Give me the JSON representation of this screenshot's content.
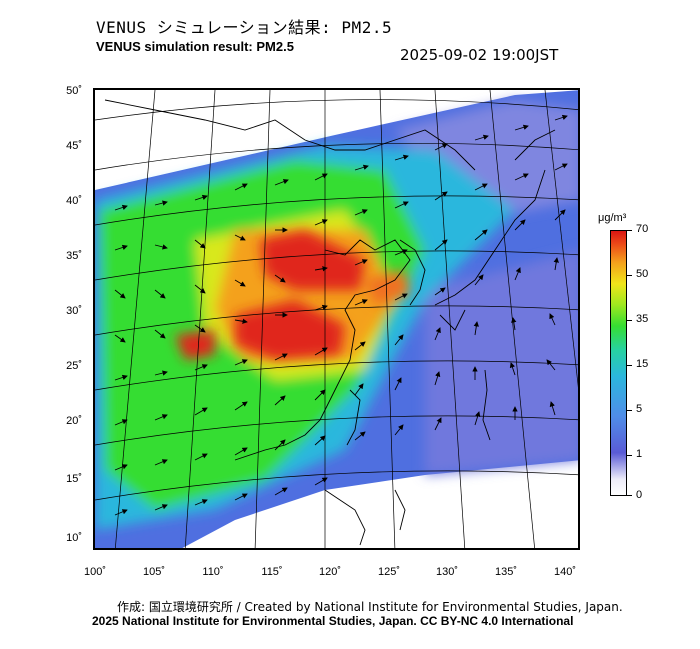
{
  "title_jp": "VENUS シミュレーション結果: PM2.5",
  "title_en": "VENUS simulation result: PM2.5",
  "timestamp": "2025-09-02 19:00JST",
  "lat_ticks": [
    "50˚",
    "45˚",
    "40˚",
    "35˚",
    "30˚",
    "25˚",
    "20˚",
    "15˚",
    "10˚"
  ],
  "lon_ticks": [
    "100˚",
    "105˚",
    "110˚",
    "115˚",
    "120˚",
    "125˚",
    "130˚",
    "135˚",
    "140˚"
  ],
  "colorbar": {
    "unit": "μg/m³",
    "labels": [
      "70",
      "50",
      "35",
      "15",
      "5",
      "1",
      "0"
    ]
  },
  "credit_line1": "作成: 国立環境研究所 / Created by National Institute for Environmental Studies, Japan.",
  "credit_line2": "2025 National Institute for Environmental Studies, Japan. CC BY-NC 4.0 International",
  "colors": {
    "very_high": "#e0261a",
    "high": "#f0a020",
    "medium": "#f0e51a",
    "moderate": "#36dd32",
    "low": "#2bb7dd",
    "very_low": "#4f6fe0",
    "clean": "#b9bde8"
  }
}
